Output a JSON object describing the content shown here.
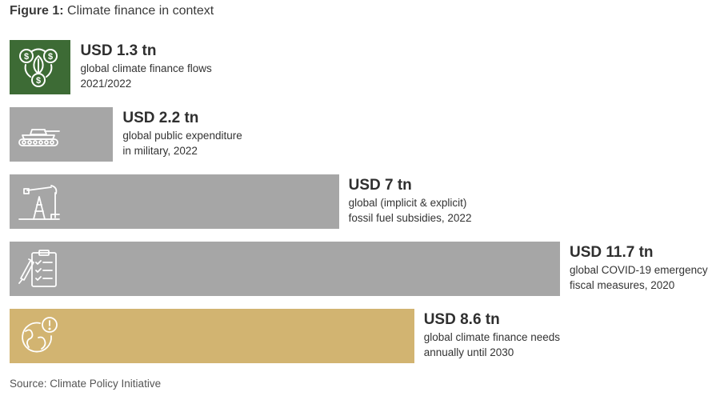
{
  "title": {
    "label": "Figure 1:",
    "text": "Climate finance in context"
  },
  "source": "Source: Climate Policy Initiative",
  "colors": {
    "flows": "#3d6b35",
    "gray": "#a6a6a6",
    "needs": "#d2b471"
  },
  "chart_data": {
    "type": "bar",
    "orientation": "horizontal",
    "unit": "USD tn",
    "categories": [
      "global climate finance flows 2021/2022",
      "global public expenditure in military, 2022",
      "global (implicit & explicit) fossil fuel subsidies, 2022",
      "global COVID-19 emergency fiscal measures, 2020",
      "global climate finance needs annually until 2030"
    ],
    "values": [
      1.3,
      2.2,
      7,
      11.7,
      8.6
    ],
    "bars": [
      {
        "value": 1.3,
        "value_label": "USD 1.3 tn",
        "desc1": "global climate finance flows",
        "desc2": "2021/2022",
        "icon": "climate-finance-leaf-icon",
        "color": "#3d6b35"
      },
      {
        "value": 2.2,
        "value_label": "USD 2.2 tn",
        "desc1": "global public expenditure",
        "desc2": "in military, 2022",
        "icon": "tank-icon",
        "color": "#a6a6a6"
      },
      {
        "value": 7,
        "value_label": "USD 7 tn",
        "desc1": "global (implicit & explicit)",
        "desc2": "fossil fuel subsidies, 2022",
        "icon": "oil-pump-icon",
        "color": "#a6a6a6"
      },
      {
        "value": 11.7,
        "value_label": "USD 11.7 tn",
        "desc1": "global COVID-19 emergency",
        "desc2": "fiscal measures, 2020",
        "icon": "medical-checklist-icon",
        "color": "#a6a6a6"
      },
      {
        "value": 8.6,
        "value_label": "USD 8.6 tn",
        "desc1": "global climate finance needs",
        "desc2": "annually until 2030",
        "icon": "globe-warning-icon",
        "color": "#d2b471"
      }
    ]
  }
}
